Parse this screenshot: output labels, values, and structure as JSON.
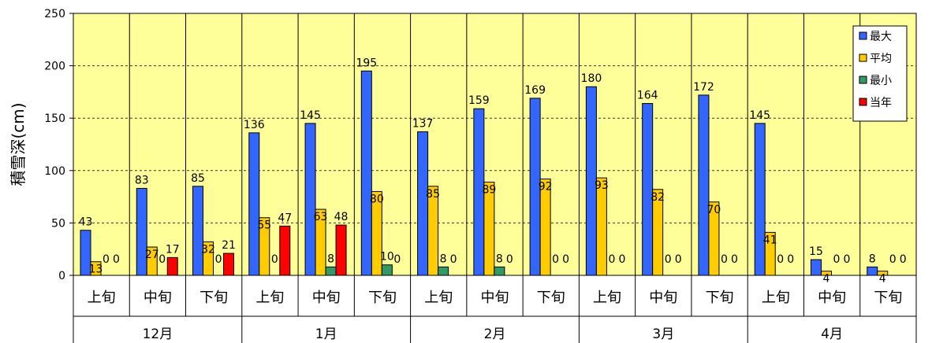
{
  "chart_data": {
    "type": "bar",
    "ylabel": "積雪深(cm)",
    "ylim": [
      0,
      250
    ],
    "yticks": [
      0,
      50,
      100,
      150,
      200,
      250
    ],
    "grid": true,
    "legend_position": "top-right",
    "categories": [
      "上旬",
      "中旬",
      "下旬",
      "上旬",
      "中旬",
      "下旬",
      "上旬",
      "中旬",
      "下旬",
      "上旬",
      "中旬",
      "下旬",
      "上旬",
      "中旬",
      "下旬"
    ],
    "groups": [
      {
        "label": "12月",
        "span": 3
      },
      {
        "label": "1月",
        "span": 3
      },
      {
        "label": "2月",
        "span": 3
      },
      {
        "label": "3月",
        "span": 3
      },
      {
        "label": "4月",
        "span": 3
      }
    ],
    "series": [
      {
        "name": "最大",
        "color": "#3366FF",
        "values": [
          43,
          83,
          85,
          136,
          145,
          195,
          137,
          159,
          169,
          180,
          164,
          172,
          145,
          15,
          8
        ]
      },
      {
        "name": "平均",
        "color": "#FFCC00",
        "values": [
          13,
          27,
          32,
          55,
          63,
          80,
          85,
          89,
          92,
          93,
          82,
          70,
          41,
          4,
          4
        ]
      },
      {
        "name": "最小",
        "color": "#339966",
        "values": [
          0,
          0,
          0,
          0,
          8,
          10,
          8,
          8,
          0,
          0,
          0,
          0,
          0,
          0,
          0
        ]
      },
      {
        "name": "当年",
        "color": "#FF0000",
        "values": [
          0,
          17,
          21,
          47,
          48,
          0,
          0,
          0,
          0,
          0,
          0,
          0,
          0,
          0,
          0
        ]
      }
    ]
  },
  "colors": {
    "plot_background": "#FFFF99",
    "bar_outline": "#000000"
  }
}
